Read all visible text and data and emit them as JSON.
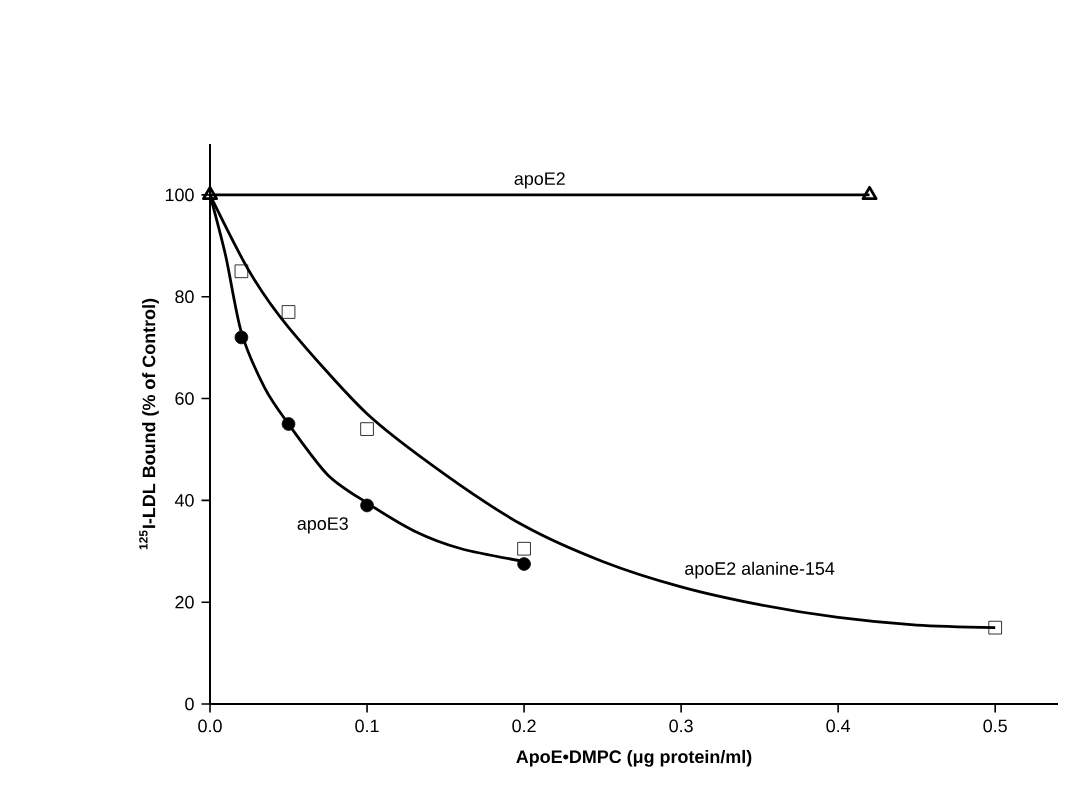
{
  "chart_data": {
    "type": "scatter",
    "xlabel": "ApoE•DMPC (μg protein/ml)",
    "ylabel": "$^{125}$I-LDL Bound (% of Control)",
    "xlim": [
      0,
      0.54
    ],
    "ylim": [
      0,
      110
    ],
    "xticks": [
      {
        "value": 0,
        "label": "0.0"
      },
      0.1,
      0.2,
      0.3,
      0.4,
      0.5
    ],
    "yticks": [
      0,
      20,
      40,
      60,
      80,
      100
    ],
    "grid": false,
    "legend": false,
    "series": [
      {
        "name": "apoE2",
        "type": "line",
        "marker": "triangle",
        "color": "#000000",
        "x": [
          0,
          0.42
        ],
        "values": [
          100,
          100
        ]
      },
      {
        "name": "apoE3",
        "type": "line",
        "marker": "none",
        "color": "#000000",
        "x": [
          0,
          0.01,
          0.02,
          0.035,
          0.05,
          0.075,
          0.1,
          0.13,
          0.16,
          0.2
        ],
        "values": [
          100,
          88,
          73,
          62,
          55,
          45,
          39.5,
          34,
          30.5,
          28
        ]
      },
      {
        "marker": "circle",
        "color": "#000000",
        "x": [
          0.02,
          0.05,
          0.1,
          0.2
        ],
        "values": [
          72,
          55,
          39,
          27.5
        ]
      },
      {
        "name": "apoE2 alanine-154",
        "type": "line",
        "marker": "none",
        "color": "#000000",
        "x": [
          0,
          0.025,
          0.05,
          0.1,
          0.15,
          0.2,
          0.25,
          0.3,
          0.35,
          0.4,
          0.45,
          0.5
        ],
        "values": [
          100,
          85,
          74,
          57,
          45,
          35,
          28,
          23,
          19.5,
          17,
          15.5,
          15
        ]
      },
      {
        "marker": "square",
        "color": "#000000",
        "x": [
          0.02,
          0.05,
          0.1,
          0.2,
          0.5
        ],
        "values": [
          85,
          77,
          54,
          30.5,
          15
        ]
      }
    ]
  }
}
